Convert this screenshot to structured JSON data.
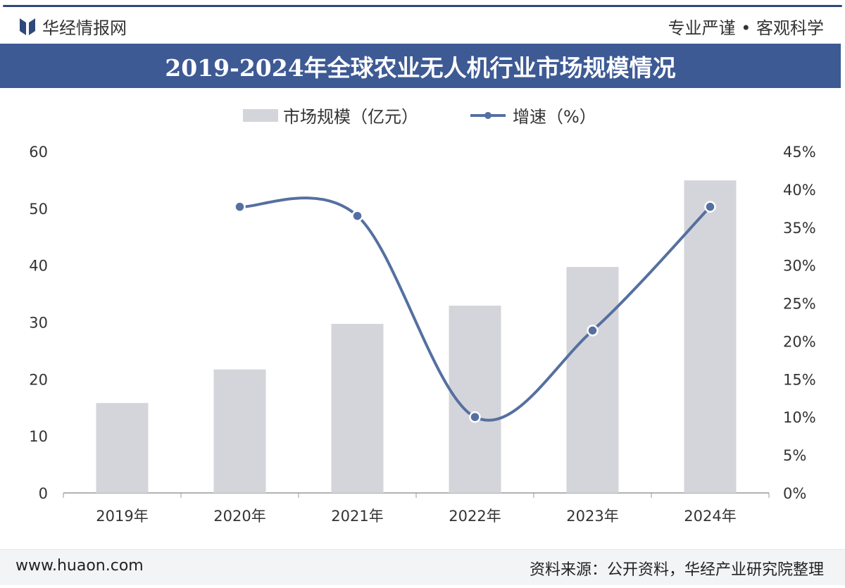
{
  "header": {
    "brand": "华经情报网",
    "slogan": "专业严谨 • 客观科学"
  },
  "colors": {
    "title_bg": "#3d5a94",
    "bar": "#d4d5da",
    "line": "#5570a0"
  },
  "chart_data": {
    "type": "bar+line",
    "title": "2019-2024年全球农业无人机行业市场规模情况",
    "categories": [
      "2019年",
      "2020年",
      "2021年",
      "2022年",
      "2023年",
      "2024年"
    ],
    "series": [
      {
        "name": "市场规模（亿元）",
        "type": "bar",
        "axis": "left",
        "values": [
          15.8,
          21.7,
          29.7,
          32.9,
          39.7,
          54.9
        ]
      },
      {
        "name": "增速（%）",
        "type": "line",
        "axis": "right",
        "values": [
          null,
          37.7,
          36.5,
          10.0,
          21.4,
          37.7
        ]
      }
    ],
    "y_left": {
      "min": 0,
      "max": 60,
      "ticks": [
        "0",
        "10",
        "20",
        "30",
        "40",
        "50",
        "60"
      ]
    },
    "y_right": {
      "min": 0,
      "max": 45,
      "ticks": [
        "0%",
        "5%",
        "10%",
        "15%",
        "20%",
        "25%",
        "30%",
        "35%",
        "40%",
        "45%"
      ]
    },
    "legend": "top-center",
    "grid": false
  },
  "footer": {
    "url": "www.huaon.com",
    "source": "资料来源：公开资料，华经产业研究院整理"
  }
}
